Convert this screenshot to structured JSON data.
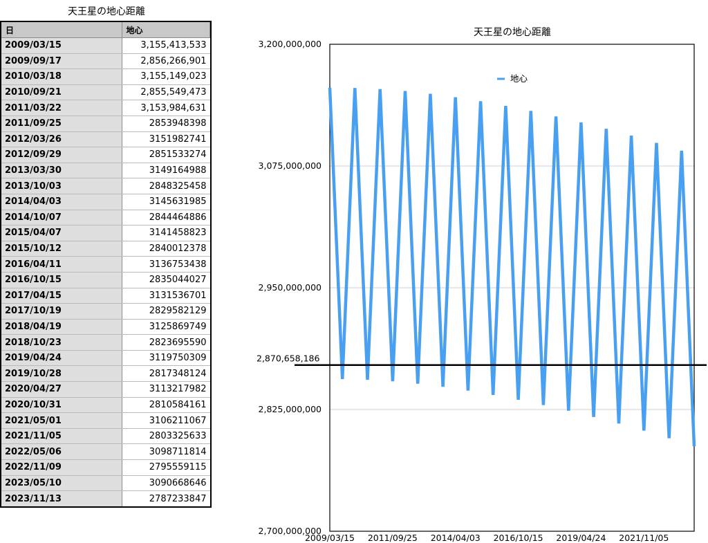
{
  "table": {
    "title": "天王星の地心距離",
    "headers": [
      "日",
      "地心"
    ],
    "rows": [
      [
        "2009/03/15",
        "3,155,413,533"
      ],
      [
        "2009/09/17",
        "2,856,266,901"
      ],
      [
        "2010/03/18",
        "3,155,149,023"
      ],
      [
        "2010/09/21",
        "2,855,549,473"
      ],
      [
        "2011/03/22",
        "3,153,984,631"
      ],
      [
        "2011/09/25",
        "2853948398"
      ],
      [
        "2012/03/26",
        "3151982741"
      ],
      [
        "2012/09/29",
        "2851533274"
      ],
      [
        "2013/03/30",
        "3149164988"
      ],
      [
        "2013/10/03",
        "2848325458"
      ],
      [
        "2014/04/03",
        "3145631985"
      ],
      [
        "2014/10/07",
        "2844464886"
      ],
      [
        "2015/04/07",
        "3141458823"
      ],
      [
        "2015/10/12",
        "2840012378"
      ],
      [
        "2016/04/11",
        "3136753438"
      ],
      [
        "2016/10/15",
        "2835044027"
      ],
      [
        "2017/04/15",
        "3131536701"
      ],
      [
        "2017/10/19",
        "2829582129"
      ],
      [
        "2018/04/19",
        "3125869749"
      ],
      [
        "2018/10/23",
        "2823695590"
      ],
      [
        "2019/04/24",
        "3119750309"
      ],
      [
        "2019/10/28",
        "2817348124"
      ],
      [
        "2020/04/27",
        "3113217982"
      ],
      [
        "2020/10/31",
        "2810584161"
      ],
      [
        "2021/05/01",
        "3106211067"
      ],
      [
        "2021/11/05",
        "2803325633"
      ],
      [
        "2022/05/06",
        "3098711814"
      ],
      [
        "2022/11/09",
        "2795559115"
      ],
      [
        "2023/05/10",
        "3090668646"
      ],
      [
        "2023/11/13",
        "2787233847"
      ]
    ]
  },
  "chart_data": {
    "type": "line",
    "title": "天王星の地心距離",
    "categories": [
      "2009/03/15",
      "2009/09/17",
      "2010/03/18",
      "2010/09/21",
      "2011/03/22",
      "2011/09/25",
      "2012/03/26",
      "2012/09/29",
      "2013/03/30",
      "2013/10/03",
      "2014/04/03",
      "2014/10/07",
      "2015/04/07",
      "2015/10/12",
      "2016/04/11",
      "2016/10/15",
      "2017/04/15",
      "2017/10/19",
      "2018/04/19",
      "2018/10/23",
      "2019/04/24",
      "2019/10/28",
      "2020/04/27",
      "2020/10/31",
      "2021/05/01",
      "2021/11/05",
      "2022/05/06",
      "2022/11/09",
      "2023/05/10",
      "2023/11/13"
    ],
    "series": [
      {
        "name": "地心",
        "color": "#4aa0f0",
        "values": [
          3155413533,
          2856266901,
          3155149023,
          2855549473,
          3153984631,
          2853948398,
          3151982741,
          2851533274,
          3149164988,
          2848325458,
          3145631985,
          2844464886,
          3141458823,
          2840012378,
          3136753438,
          2835044027,
          3131536701,
          2829582129,
          3125869749,
          2823695590,
          3119750309,
          2817348124,
          3113217982,
          2810584161,
          3106211067,
          2803325633,
          3098711814,
          2795559115,
          3090668646,
          2787233847
        ]
      }
    ],
    "ylim": [
      2700000000,
      3200000000
    ],
    "yticks": [
      2700000000,
      2825000000,
      2950000000,
      3075000000,
      3200000000
    ],
    "ytick_labels": [
      "2,700,000,000",
      "2,825,000,000",
      "2,950,000,000",
      "3,075,000,000",
      "3,200,000,000"
    ],
    "xtick_labels": [
      "2009/03/15",
      "2011/09/25",
      "2014/04/03",
      "2016/10/15",
      "2019/04/24",
      "2021/11/05"
    ],
    "reference_line": {
      "value": 2870658186,
      "label": "2,870,658,186",
      "color": "#000000"
    },
    "legend": "top-left inside",
    "grid": true
  }
}
